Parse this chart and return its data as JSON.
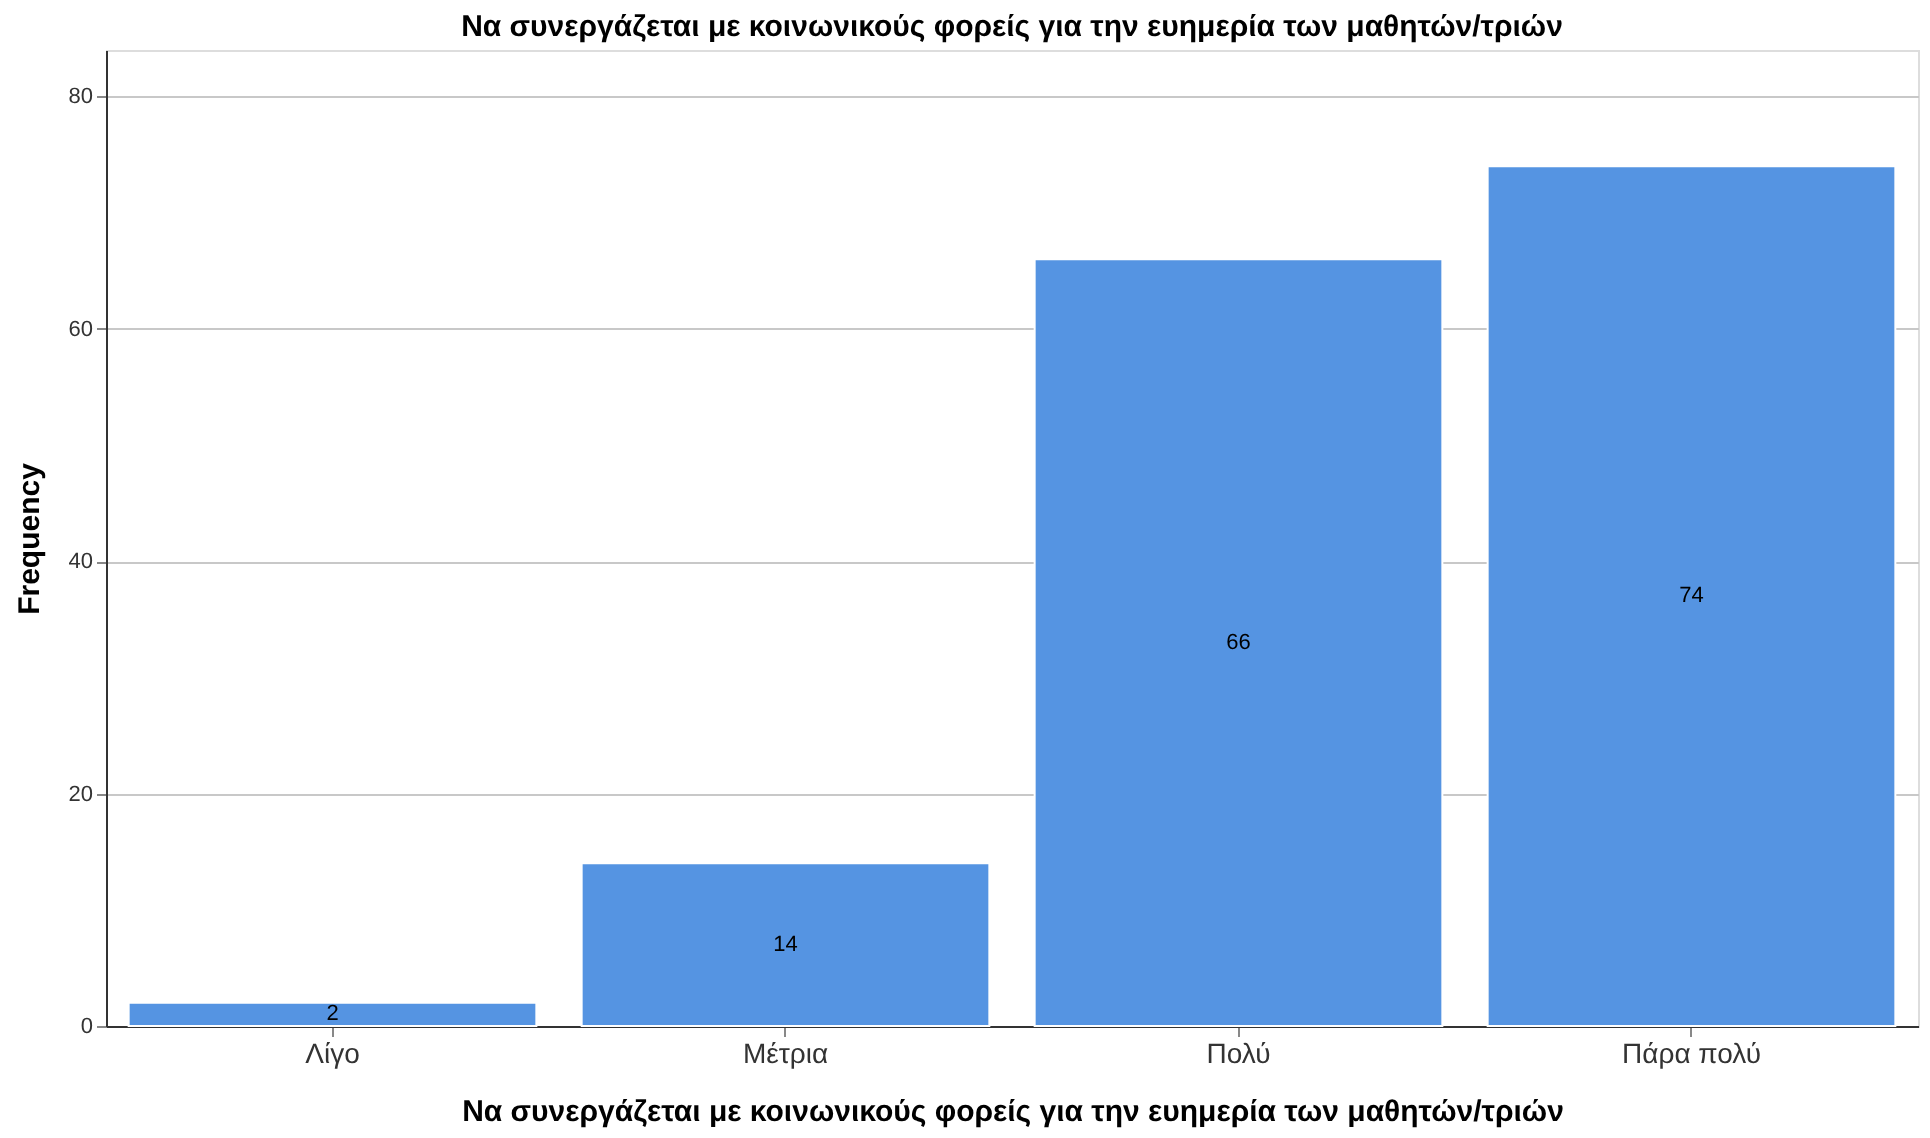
{
  "chart_data": {
    "type": "bar",
    "title": "Να συνεργάζεται με κοινωνικούς φορείς για την ευημερία των μαθητών/τριών",
    "xlabel": "Να συνεργάζεται με κοινωνικούς φορείς για την ευημερία των μαθητών/τριών",
    "ylabel": "Frequency",
    "categories": [
      "Λίγο",
      "Μέτρια",
      "Πολύ",
      "Πάρα πολύ"
    ],
    "values": [
      2,
      14,
      66,
      74
    ],
    "color": "#5594e2",
    "ylim": [
      0,
      84
    ],
    "yticks": [
      0,
      20,
      40,
      60,
      80
    ],
    "grid": "y",
    "data_labels": true
  }
}
